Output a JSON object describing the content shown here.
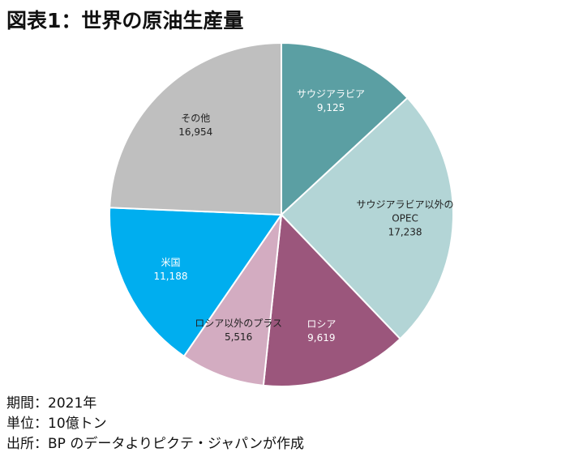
{
  "chart_data": {
    "type": "pie",
    "title": "図表1：世界の原油生産量",
    "categories": [
      "サウジアラビア",
      "サウジアラビア以外のOPEC",
      "ロシア",
      "ロシア以外のプラス",
      "米国",
      "その他"
    ],
    "values": [
      9125,
      17238,
      9619,
      5516,
      11188,
      16954
    ],
    "value_labels": [
      "9,125",
      "17,238",
      "9,619",
      "5,516",
      "11,188",
      "16,954"
    ],
    "colors": [
      "#5b9fa3",
      "#b3d5d6",
      "#9b567c",
      "#d3acc1",
      "#00aeef",
      "#bfbfbf"
    ],
    "notes": [
      "期間：2021年",
      "単位：10億トン",
      "出所：BP のデータよりピクテ・ジャパンが作成"
    ]
  }
}
